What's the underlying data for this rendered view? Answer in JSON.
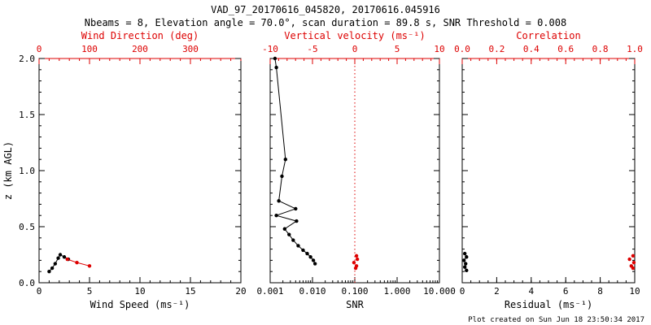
{
  "title": "VAD_97_20170616_045820, 20170616.045916",
  "subtitle": "Nbeams = 8, Elevation angle = 70.0°, scan duration = 89.8 s, SNR Threshold = 0.008",
  "footer": "Plot created on Sun Jun 18 23:50:34 2017",
  "colors": {
    "red": "#dd0000",
    "black": "#000000",
    "background": "#ffffff"
  },
  "yaxis": {
    "label": "z (km AGL)",
    "lim": [
      0,
      2
    ],
    "ticks": [
      {
        "v": 0,
        "label": "0.0"
      },
      {
        "v": 0.5,
        "label": "0.5"
      },
      {
        "v": 1,
        "label": "1.0"
      },
      {
        "v": 1.5,
        "label": "1.5"
      },
      {
        "v": 2,
        "label": "2.0"
      }
    ]
  },
  "chart_data": [
    {
      "id": "wind",
      "type": "scatter",
      "y_tick_labels": true,
      "x_bottom": {
        "label": "Wind Speed (ms⁻¹)",
        "lim": [
          0,
          20
        ],
        "log": false,
        "ticks": [
          {
            "v": 0,
            "label": "0"
          },
          {
            "v": 5,
            "label": "5"
          },
          {
            "v": 10,
            "label": "10"
          },
          {
            "v": 15,
            "label": "15"
          },
          {
            "v": 20,
            "label": "20"
          }
        ]
      },
      "x_top": {
        "label": "Wind Direction (deg)",
        "lim": [
          0,
          400
        ],
        "ticks": [
          {
            "v": 0,
            "label": "0"
          },
          {
            "v": 100,
            "label": "100"
          },
          {
            "v": 200,
            "label": "200"
          },
          {
            "v": 300,
            "label": "300"
          }
        ]
      },
      "series": [
        {
          "name": "wind-speed",
          "axis": "bottom",
          "color": "black",
          "line": true,
          "points": [
            [
              1.0,
              0.1
            ],
            [
              1.3,
              0.13
            ],
            [
              1.6,
              0.17
            ],
            [
              1.9,
              0.22
            ],
            [
              2.1,
              0.25
            ],
            [
              2.5,
              0.23
            ],
            [
              2.9,
              0.21
            ]
          ]
        },
        {
          "name": "wind-direction",
          "axis": "top",
          "color": "red",
          "line": true,
          "points": [
            [
              56,
              0.21
            ],
            [
              75,
              0.18
            ],
            [
              100,
              0.15
            ]
          ]
        }
      ]
    },
    {
      "id": "snr",
      "type": "scatter",
      "y_tick_labels": false,
      "x_bottom": {
        "label": "SNR",
        "lim": [
          0.001,
          10
        ],
        "log": true,
        "ticks": [
          {
            "v": 0.001,
            "label": "0.001"
          },
          {
            "v": 0.01,
            "label": "0.010"
          },
          {
            "v": 0.1,
            "label": "0.100"
          },
          {
            "v": 1,
            "label": "1.000"
          },
          {
            "v": 10,
            "label": "10.000"
          }
        ]
      },
      "x_top": {
        "label": "Vertical velocity (ms⁻¹)",
        "lim": [
          -10,
          10
        ],
        "ticks": [
          {
            "v": -10,
            "label": "-10"
          },
          {
            "v": -5,
            "label": "-5"
          },
          {
            "v": 0,
            "label": "0"
          },
          {
            "v": 5,
            "label": "5"
          },
          {
            "v": 10,
            "label": "10"
          }
        ]
      },
      "refline_top": {
        "v": 0,
        "style": "dotted",
        "color": "red"
      },
      "series": [
        {
          "name": "snr-profile",
          "axis": "bottom",
          "color": "black",
          "line": true,
          "points": [
            [
              0.0013,
              2.0
            ],
            [
              0.0014,
              1.92
            ],
            [
              0.0023,
              1.1
            ],
            [
              0.0019,
              0.95
            ],
            [
              0.0016,
              0.73
            ],
            [
              0.004,
              0.66
            ],
            [
              0.0014,
              0.6
            ],
            [
              0.0042,
              0.55
            ],
            [
              0.0022,
              0.48
            ],
            [
              0.0028,
              0.43
            ],
            [
              0.0035,
              0.38
            ],
            [
              0.0046,
              0.33
            ],
            [
              0.006,
              0.29
            ],
            [
              0.0075,
              0.26
            ],
            [
              0.009,
              0.23
            ],
            [
              0.0105,
              0.2
            ],
            [
              0.0115,
              0.17
            ]
          ]
        },
        {
          "name": "vertical-velocity",
          "axis": "top",
          "color": "red",
          "line": false,
          "points": [
            [
              0.2,
              0.24
            ],
            [
              0.3,
              0.21
            ],
            [
              -0.1,
              0.18
            ],
            [
              0.2,
              0.15
            ],
            [
              0.1,
              0.13
            ]
          ]
        }
      ]
    },
    {
      "id": "residual",
      "type": "scatter",
      "y_tick_labels": false,
      "x_bottom": {
        "label": "Residual (ms⁻¹)",
        "lim": [
          0,
          10
        ],
        "log": false,
        "ticks": [
          {
            "v": 0,
            "label": "0"
          },
          {
            "v": 2,
            "label": "2"
          },
          {
            "v": 4,
            "label": "4"
          },
          {
            "v": 6,
            "label": "6"
          },
          {
            "v": 8,
            "label": "8"
          },
          {
            "v": 10,
            "label": "10"
          }
        ]
      },
      "x_top": {
        "label": "Correlation",
        "lim": [
          0,
          1
        ],
        "ticks": [
          {
            "v": 0,
            "label": "0.0"
          },
          {
            "v": 0.2,
            "label": "0.2"
          },
          {
            "v": 0.4,
            "label": "0.4"
          },
          {
            "v": 0.6,
            "label": "0.6"
          },
          {
            "v": 0.8,
            "label": "0.8"
          },
          {
            "v": 1,
            "label": "1.0"
          }
        ]
      },
      "series": [
        {
          "name": "residual",
          "axis": "bottom",
          "color": "black",
          "line": true,
          "points": [
            [
              0.15,
              0.26
            ],
            [
              0.25,
              0.23
            ],
            [
              0.1,
              0.2
            ],
            [
              0.2,
              0.17
            ],
            [
              0.15,
              0.14
            ],
            [
              0.25,
              0.11
            ]
          ]
        },
        {
          "name": "correlation",
          "axis": "top",
          "color": "red",
          "line": false,
          "points": [
            [
              0.99,
              0.24
            ],
            [
              0.97,
              0.21
            ],
            [
              0.995,
              0.18
            ],
            [
              0.98,
              0.15
            ],
            [
              0.99,
              0.13
            ]
          ]
        }
      ]
    }
  ]
}
